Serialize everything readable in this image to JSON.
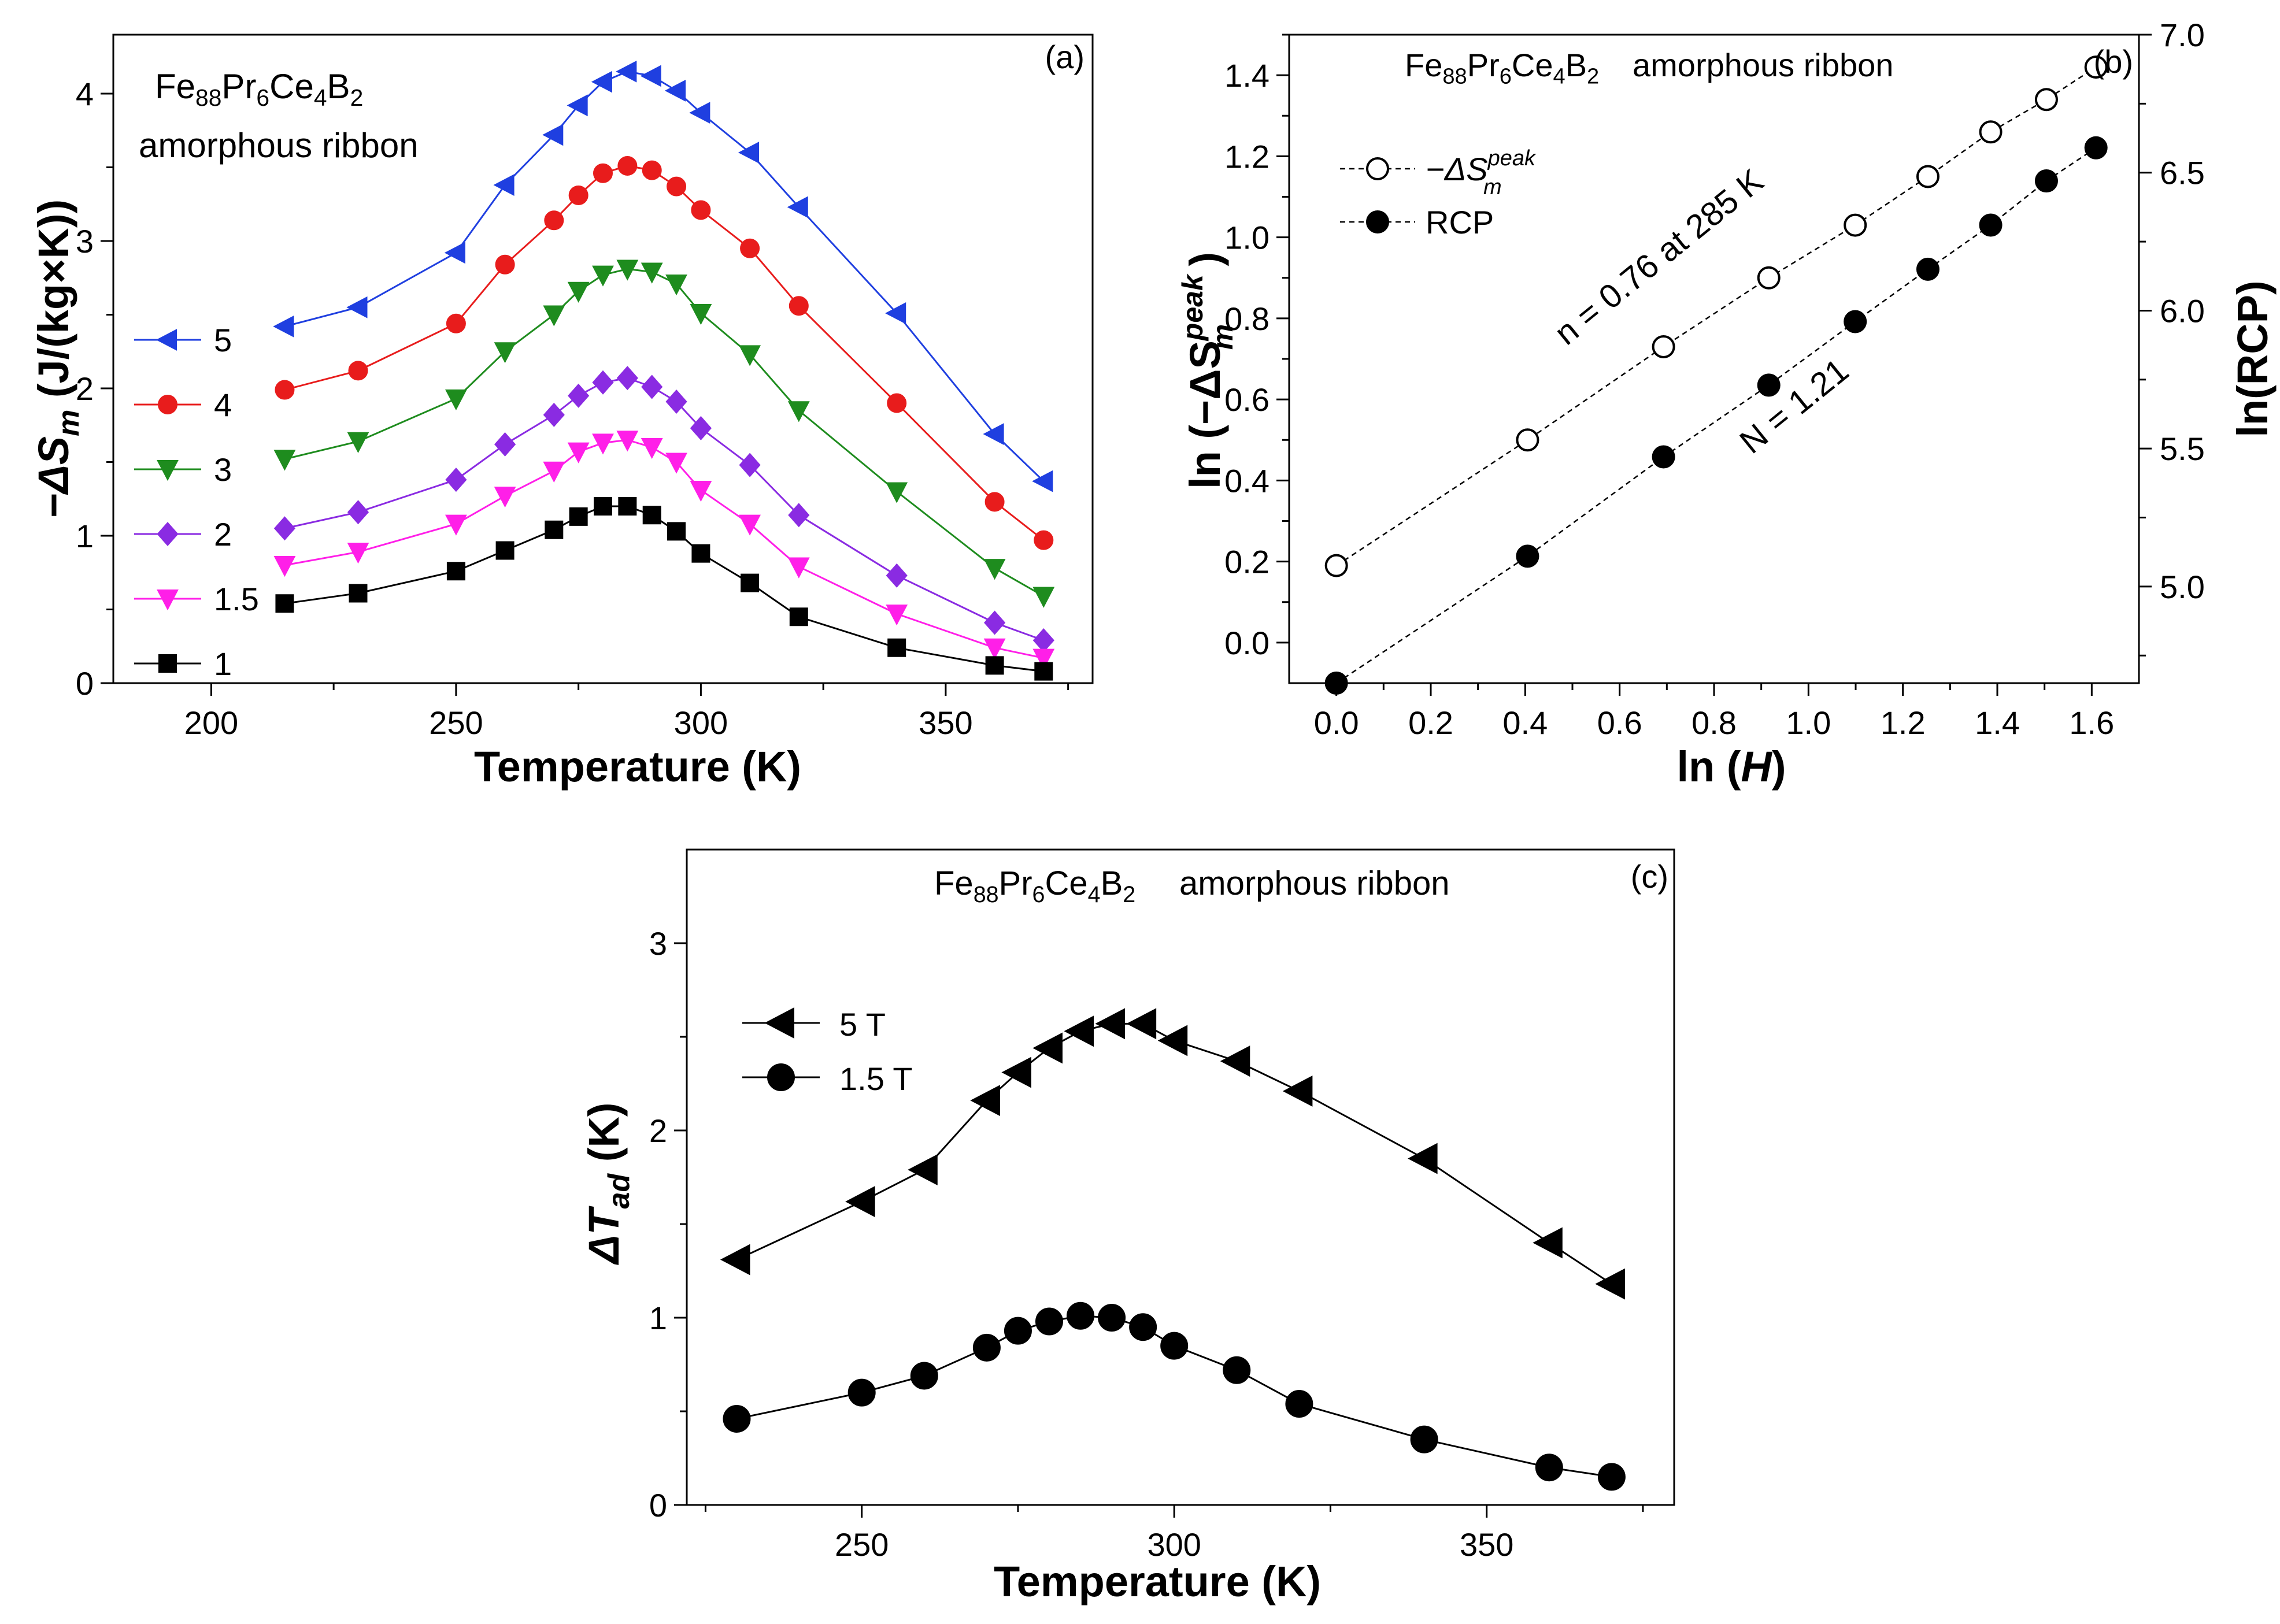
{
  "chart_data": [
    {
      "panel": "a",
      "type": "line",
      "panel_label": "(a)",
      "annotation": {
        "formula": {
          "base": "Fe",
          "s1": "88",
          "el2": "Pr",
          "s2": "6",
          "el3": "Ce",
          "s3": "4",
          "el4": "B",
          "s4": "2"
        },
        "line2": "amorphous ribbon"
      },
      "xlabel": "Temperature (K)",
      "ylabel": {
        "prefix": "−ΔS",
        "sub": "m",
        "suffix": " (J/(kg×K))"
      },
      "xlim": [
        180,
        380
      ],
      "ylim": [
        0,
        4.4
      ],
      "xticks": [
        "200",
        "250",
        "300",
        "350"
      ],
      "yticks": [
        "0",
        "1",
        "2",
        "3",
        "4"
      ],
      "x": [
        215,
        230,
        250,
        260,
        270,
        275,
        280,
        285,
        290,
        295,
        300,
        310,
        320,
        340,
        360,
        370
      ],
      "series": [
        {
          "name": "5",
          "marker": "triangle-left",
          "color": "#1f3fe0",
          "values": [
            2.42,
            2.55,
            2.92,
            3.38,
            3.72,
            3.92,
            4.08,
            4.15,
            4.12,
            4.02,
            3.87,
            3.6,
            3.23,
            2.51,
            1.69,
            1.37
          ]
        },
        {
          "name": "4",
          "marker": "circle",
          "color": "#e81c1c",
          "values": [
            1.99,
            2.12,
            2.44,
            2.84,
            3.14,
            3.31,
            3.46,
            3.51,
            3.48,
            3.37,
            3.21,
            2.95,
            2.56,
            1.9,
            1.23,
            0.97
          ]
        },
        {
          "name": "3",
          "marker": "triangle-down",
          "color": "#1e8c1e",
          "values": [
            1.52,
            1.64,
            1.93,
            2.25,
            2.5,
            2.66,
            2.77,
            2.81,
            2.79,
            2.71,
            2.51,
            2.23,
            1.85,
            1.3,
            0.78,
            0.59
          ]
        },
        {
          "name": "2",
          "marker": "diamond",
          "color": "#8a2be2",
          "values": [
            1.05,
            1.16,
            1.38,
            1.62,
            1.82,
            1.95,
            2.04,
            2.07,
            2.01,
            1.91,
            1.73,
            1.48,
            1.14,
            0.73,
            0.41,
            0.29
          ]
        },
        {
          "name": "1.5",
          "marker": "triangle-down",
          "color": "#ff1fe8",
          "values": [
            0.8,
            0.89,
            1.08,
            1.27,
            1.44,
            1.57,
            1.63,
            1.65,
            1.6,
            1.5,
            1.31,
            1.08,
            0.79,
            0.47,
            0.24,
            0.17
          ]
        },
        {
          "name": "1",
          "marker": "square",
          "color": "#000000",
          "values": [
            0.54,
            0.61,
            0.76,
            0.9,
            1.04,
            1.13,
            1.2,
            1.2,
            1.14,
            1.03,
            0.88,
            0.68,
            0.45,
            0.24,
            0.12,
            0.08
          ]
        }
      ]
    },
    {
      "panel": "b",
      "type": "scatter",
      "panel_label": "(b)",
      "annotation": {
        "formula": {
          "base": "Fe",
          "s1": "88",
          "el2": "Pr",
          "s2": "6",
          "el3": "Ce",
          "s3": "4",
          "el4": "B",
          "s4": "2"
        },
        "line2": "amorphous ribbon"
      },
      "xlabel": {
        "prefix": "ln (",
        "italic": "H",
        "suffix": ")"
      },
      "ylabel": {
        "prefix": "ln (−ΔS",
        "sup": "peak",
        "sub": "m",
        "suffix": ")"
      },
      "ylabel_right": "ln(RCP)",
      "xlim": [
        -0.1,
        1.7
      ],
      "ylim": [
        -0.1,
        1.5
      ],
      "ylim_right": [
        4.65,
        7.0
      ],
      "xticks": [
        "0.0",
        "0.2",
        "0.4",
        "0.6",
        "0.8",
        "1.0",
        "1.2",
        "1.4",
        "1.6"
      ],
      "yticks": [
        "0.0",
        "0.2",
        "0.4",
        "0.6",
        "0.8",
        "1.0",
        "1.2",
        "1.4"
      ],
      "yticks_right": [
        "5.0",
        "5.5",
        "6.0",
        "6.5",
        "7.0"
      ],
      "x": [
        0,
        0.405,
        0.693,
        0.916,
        1.099,
        1.253,
        1.386,
        1.504,
        1.609
      ],
      "series": [
        {
          "name": "−ΔS_m^peak",
          "marker": "circle-open",
          "color": "#000000",
          "axis": "left",
          "values": [
            0.19,
            0.5,
            0.73,
            0.9,
            1.03,
            1.15,
            1.26,
            1.34,
            1.42
          ]
        },
        {
          "name": "RCP",
          "marker": "circle",
          "color": "#000000",
          "axis": "right",
          "values": [
            4.65,
            5.11,
            5.47,
            5.73,
            5.96,
            6.15,
            6.31,
            6.47,
            6.59
          ]
        }
      ],
      "legend": [
        {
          "label_prefix": "−ΔS",
          "sup": "peak",
          "sub": "m"
        },
        {
          "label_prefix": "RCP"
        }
      ],
      "fit_labels": [
        "n = 0.76 at 285 K",
        "N = 1.21"
      ]
    },
    {
      "panel": "c",
      "type": "line",
      "panel_label": "(c)",
      "annotation": {
        "formula": {
          "base": "Fe",
          "s1": "88",
          "el2": "Pr",
          "s2": "6",
          "el3": "Ce",
          "s3": "4",
          "el4": "B",
          "s4": "2"
        },
        "line2": "amorphous ribbon"
      },
      "xlabel": "Temperature (K)",
      "ylabel": {
        "prefix": "ΔT",
        "sub": "ad",
        "suffix": " (K)"
      },
      "xlim": [
        222,
        380
      ],
      "ylim": [
        0,
        3.5
      ],
      "xticks": [
        "250",
        "300",
        "350"
      ],
      "yticks": [
        "0",
        "1",
        "2",
        "3"
      ],
      "x": [
        230,
        250,
        260,
        270,
        275,
        280,
        285,
        290,
        295,
        300,
        310,
        320,
        340,
        360,
        370
      ],
      "series": [
        {
          "name": "5 T",
          "marker": "triangle-left",
          "color": "#000000",
          "values": [
            1.31,
            1.62,
            1.79,
            2.16,
            2.31,
            2.44,
            2.53,
            2.57,
            2.57,
            2.48,
            2.37,
            2.21,
            1.85,
            1.4,
            1.18
          ]
        },
        {
          "name": "1.5 T",
          "marker": "circle",
          "color": "#000000",
          "values": [
            0.46,
            0.6,
            0.69,
            0.84,
            0.93,
            0.98,
            1.01,
            1.0,
            0.95,
            0.85,
            0.72,
            0.54,
            0.35,
            0.2,
            0.15
          ]
        }
      ]
    }
  ]
}
